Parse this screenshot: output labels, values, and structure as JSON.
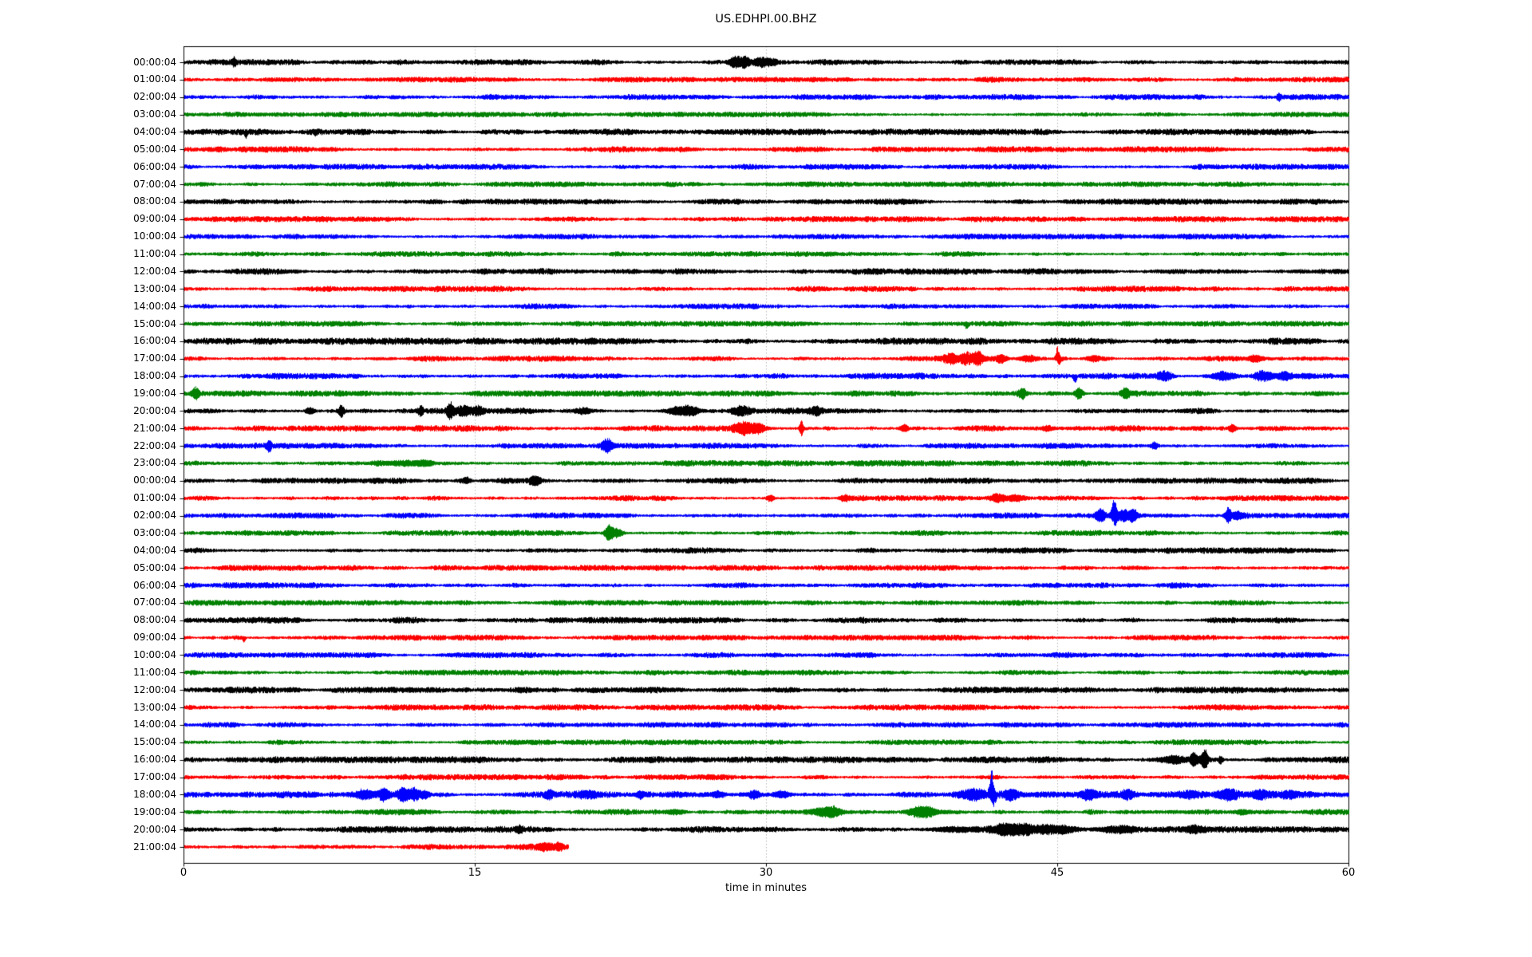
{
  "title": "US.EDHPI.00.BHZ",
  "chart_data": {
    "type": "line",
    "subtype": "seismogram-helicorder-dayplot",
    "title": "US.EDHPI.00.BHZ",
    "xlabel": "time in minutes",
    "x_range": [
      0,
      60
    ],
    "x_ticks": [
      "0",
      "15",
      "30",
      "45",
      "60"
    ],
    "grid": {
      "vertical_minutes": [
        15,
        30,
        45
      ],
      "style": "dotted",
      "color": "#b0b0b0"
    },
    "legend": "none",
    "trace_color_cycle": [
      "#000000",
      "#ff0000",
      "#0000ff",
      "#008000"
    ],
    "axis_color": "#000000",
    "background_color": "#ffffff",
    "rows": [
      {
        "label": "00:00:04",
        "end": 60,
        "noise": 2.7,
        "events": [
          [
            2.6,
            5,
            0.07,
            0
          ],
          [
            28.4,
            8,
            0.2,
            0
          ],
          [
            28.9,
            6,
            0.18,
            0
          ],
          [
            29.7,
            4,
            0.3,
            0
          ],
          [
            30.3,
            3,
            0.2,
            0
          ]
        ]
      },
      {
        "label": "01:00:04",
        "end": 60,
        "noise": 2.6,
        "events": []
      },
      {
        "label": "02:00:04",
        "end": 60,
        "noise": 2.6,
        "events": [
          [
            56.4,
            4,
            0.07,
            0
          ]
        ]
      },
      {
        "label": "03:00:04",
        "end": 60,
        "noise": 2.4,
        "events": []
      },
      {
        "label": "04:00:04",
        "end": 60,
        "noise": 2.9,
        "events": [
          [
            3.2,
            7,
            0.06,
            -1
          ],
          [
            6.8,
            3,
            0.06,
            -1
          ]
        ]
      },
      {
        "label": "05:00:04",
        "end": 60,
        "noise": 2.8,
        "events": []
      },
      {
        "label": "06:00:04",
        "end": 60,
        "noise": 2.6,
        "events": []
      },
      {
        "label": "07:00:04",
        "end": 60,
        "noise": 2.5,
        "events": []
      },
      {
        "label": "08:00:04",
        "end": 60,
        "noise": 2.8,
        "events": []
      },
      {
        "label": "09:00:04",
        "end": 60,
        "noise": 2.6,
        "events": []
      },
      {
        "label": "10:00:04",
        "end": 60,
        "noise": 2.6,
        "events": []
      },
      {
        "label": "11:00:04",
        "end": 60,
        "noise": 2.5,
        "events": []
      },
      {
        "label": "12:00:04",
        "end": 60,
        "noise": 2.9,
        "events": []
      },
      {
        "label": "13:00:04",
        "end": 60,
        "noise": 2.7,
        "events": []
      },
      {
        "label": "14:00:04",
        "end": 60,
        "noise": 2.6,
        "events": []
      },
      {
        "label": "15:00:04",
        "end": 60,
        "noise": 2.5,
        "events": [
          [
            40.3,
            5,
            0.07,
            -1
          ]
        ]
      },
      {
        "label": "16:00:04",
        "end": 60,
        "noise": 3.1,
        "events": []
      },
      {
        "label": "17:00:04",
        "end": 60,
        "noise": 2.7,
        "events": [
          [
            39.5,
            5,
            0.25,
            0
          ],
          [
            40.3,
            6,
            0.2,
            0
          ],
          [
            40.9,
            8,
            0.18,
            0
          ],
          [
            42.1,
            5,
            0.2,
            0
          ],
          [
            43.4,
            3,
            0.35,
            0
          ],
          [
            45.0,
            14,
            0.07,
            1
          ],
          [
            45.1,
            7,
            0.08,
            -1
          ],
          [
            46.9,
            4,
            0.25,
            0
          ],
          [
            55.2,
            3,
            0.25,
            0
          ]
        ]
      },
      {
        "label": "18:00:04",
        "end": 60,
        "noise": 3.0,
        "events": [
          [
            45.9,
            8,
            0.07,
            -1
          ],
          [
            50.5,
            4,
            0.3,
            0
          ],
          [
            53.6,
            5,
            0.45,
            0
          ],
          [
            55.6,
            6,
            0.35,
            0
          ],
          [
            56.7,
            5,
            0.3,
            0
          ],
          [
            57.8,
            3,
            0.3,
            0
          ]
        ]
      },
      {
        "label": "19:00:04",
        "end": 60,
        "noise": 2.8,
        "events": [
          [
            0.6,
            7,
            0.12,
            0
          ],
          [
            43.2,
            6,
            0.14,
            0
          ],
          [
            46.1,
            7,
            0.14,
            0
          ],
          [
            48.5,
            6,
            0.14,
            0
          ]
        ]
      },
      {
        "label": "20:00:04",
        "end": 60,
        "noise": 2.9,
        "events": [
          [
            6.5,
            4,
            0.15,
            0
          ],
          [
            8.1,
            7,
            0.09,
            0
          ],
          [
            12.2,
            6,
            0.09,
            0
          ],
          [
            13.7,
            9,
            0.12,
            0
          ],
          [
            14.4,
            5,
            0.35,
            0
          ],
          [
            15.2,
            4,
            0.2,
            0
          ],
          [
            20.6,
            3,
            0.3,
            0
          ],
          [
            25.5,
            5,
            0.45,
            0
          ],
          [
            26.2,
            4,
            0.3,
            0
          ],
          [
            28.7,
            4,
            0.35,
            0
          ],
          [
            32.6,
            4,
            0.2,
            0
          ]
        ]
      },
      {
        "label": "21:00:04",
        "end": 60,
        "noise": 2.8,
        "events": [
          [
            28.8,
            7,
            0.35,
            0
          ],
          [
            29.6,
            5,
            0.25,
            0
          ],
          [
            31.8,
            9,
            0.07,
            0
          ],
          [
            37.1,
            4,
            0.14,
            0
          ],
          [
            44.5,
            3,
            0.2,
            0
          ],
          [
            54.0,
            5,
            0.14,
            0
          ]
        ]
      },
      {
        "label": "22:00:04",
        "end": 60,
        "noise": 2.7,
        "events": [
          [
            4.4,
            6,
            0.08,
            0
          ],
          [
            21.8,
            8,
            0.18,
            0
          ],
          [
            50.0,
            4,
            0.14,
            0
          ]
        ]
      },
      {
        "label": "23:00:04",
        "end": 60,
        "noise": 2.8,
        "events": [
          [
            11.0,
            2,
            1.2,
            0
          ],
          [
            12.4,
            3,
            0.3,
            0
          ]
        ]
      },
      {
        "label": "00:00:04",
        "end": 60,
        "noise": 2.8,
        "events": [
          [
            14.5,
            3,
            0.2,
            0
          ],
          [
            18.1,
            5,
            0.22,
            0
          ]
        ]
      },
      {
        "label": "01:00:04",
        "end": 60,
        "noise": 2.6,
        "events": [
          [
            30.2,
            4,
            0.14,
            0
          ],
          [
            34.0,
            3,
            0.2,
            0
          ],
          [
            41.9,
            5,
            0.28,
            0
          ],
          [
            42.8,
            4,
            0.28,
            0
          ]
        ]
      },
      {
        "label": "02:00:04",
        "end": 60,
        "noise": 2.7,
        "events": [
          [
            47.2,
            7,
            0.18,
            0
          ],
          [
            47.9,
            24,
            0.09,
            1
          ],
          [
            47.95,
            11,
            0.1,
            -1
          ],
          [
            48.4,
            6,
            0.2,
            0
          ],
          [
            48.9,
            7,
            0.14,
            0
          ],
          [
            53.8,
            9,
            0.11,
            0
          ],
          [
            54.3,
            4,
            0.2,
            0
          ]
        ]
      },
      {
        "label": "03:00:04",
        "end": 60,
        "noise": 2.6,
        "events": [
          [
            21.9,
            9,
            0.16,
            0
          ],
          [
            22.3,
            5,
            0.22,
            0
          ]
        ]
      },
      {
        "label": "04:00:04",
        "end": 60,
        "noise": 2.8,
        "events": []
      },
      {
        "label": "05:00:04",
        "end": 60,
        "noise": 2.6,
        "events": []
      },
      {
        "label": "06:00:04",
        "end": 60,
        "noise": 2.7,
        "events": []
      },
      {
        "label": "07:00:04",
        "end": 60,
        "noise": 2.5,
        "events": []
      },
      {
        "label": "08:00:04",
        "end": 60,
        "noise": 2.9,
        "events": []
      },
      {
        "label": "09:00:04",
        "end": 60,
        "noise": 2.6,
        "events": [
          [
            3.1,
            6,
            0.06,
            -1
          ]
        ]
      },
      {
        "label": "10:00:04",
        "end": 60,
        "noise": 2.6,
        "events": []
      },
      {
        "label": "11:00:04",
        "end": 60,
        "noise": 2.5,
        "events": []
      },
      {
        "label": "12:00:04",
        "end": 60,
        "noise": 3.0,
        "events": []
      },
      {
        "label": "13:00:04",
        "end": 60,
        "noise": 2.7,
        "events": []
      },
      {
        "label": "14:00:04",
        "end": 60,
        "noise": 2.6,
        "events": []
      },
      {
        "label": "15:00:04",
        "end": 60,
        "noise": 2.5,
        "events": []
      },
      {
        "label": "16:00:04",
        "end": 60,
        "noise": 3.0,
        "events": [
          [
            50.9,
            4,
            0.55,
            0
          ],
          [
            52.0,
            7,
            0.09,
            0
          ],
          [
            52.3,
            5,
            0.28,
            0
          ],
          [
            52.6,
            10,
            0.1,
            0
          ],
          [
            53.4,
            4,
            0.09,
            0
          ]
        ]
      },
      {
        "label": "17:00:04",
        "end": 60,
        "noise": 2.7,
        "events": []
      },
      {
        "label": "18:00:04",
        "end": 60,
        "noise": 3.1,
        "events": [
          [
            9.3,
            4,
            0.28,
            0
          ],
          [
            10.3,
            6,
            0.18,
            0
          ],
          [
            11.3,
            7,
            0.22,
            0
          ],
          [
            11.9,
            6,
            0.18,
            0
          ],
          [
            12.4,
            4,
            0.18,
            0
          ],
          [
            18.8,
            5,
            0.11,
            0
          ],
          [
            20.8,
            3,
            0.35,
            0
          ],
          [
            23.5,
            4,
            0.14,
            0
          ],
          [
            27.5,
            4,
            0.28,
            0
          ],
          [
            29.4,
            5,
            0.18,
            0
          ],
          [
            30.8,
            4,
            0.35,
            0
          ],
          [
            40.8,
            6,
            0.45,
            0
          ],
          [
            41.6,
            30,
            0.08,
            1
          ],
          [
            41.7,
            13,
            0.1,
            -1
          ],
          [
            42.6,
            5,
            0.28,
            0
          ],
          [
            46.6,
            5,
            0.28,
            0
          ],
          [
            48.6,
            4,
            0.2,
            0
          ],
          [
            51.8,
            3,
            0.3,
            0
          ],
          [
            53.8,
            5,
            0.35,
            0
          ],
          [
            55.4,
            4,
            0.3,
            0
          ],
          [
            56.9,
            3,
            0.3,
            0
          ]
        ]
      },
      {
        "label": "19:00:04",
        "end": 60,
        "noise": 2.8,
        "events": [
          [
            25.3,
            3,
            0.3,
            0
          ],
          [
            32.9,
            5,
            0.45,
            0
          ],
          [
            33.5,
            4,
            0.3,
            0
          ],
          [
            37.8,
            5,
            0.35,
            0
          ],
          [
            38.4,
            4,
            0.3,
            0
          ],
          [
            54.5,
            3,
            0.3,
            0
          ]
        ]
      },
      {
        "label": "20:00:04",
        "end": 60,
        "noise": 3.0,
        "events": [
          [
            17.3,
            3,
            0.09,
            0
          ],
          [
            39.8,
            3,
            0.9,
            0
          ],
          [
            42.3,
            6,
            0.55,
            0
          ],
          [
            43.3,
            5,
            0.38,
            0
          ],
          [
            44.3,
            4,
            0.38,
            0
          ],
          [
            45.3,
            4,
            0.45,
            0
          ],
          [
            47.9,
            3,
            0.7,
            0
          ],
          [
            52.0,
            3,
            0.3,
            0
          ]
        ]
      },
      {
        "label": "21:00:04",
        "end": 19.8,
        "noise": 2.9,
        "events": [
          [
            18.6,
            4,
            0.28,
            0
          ],
          [
            19.3,
            4,
            0.14,
            0
          ]
        ]
      }
    ]
  }
}
